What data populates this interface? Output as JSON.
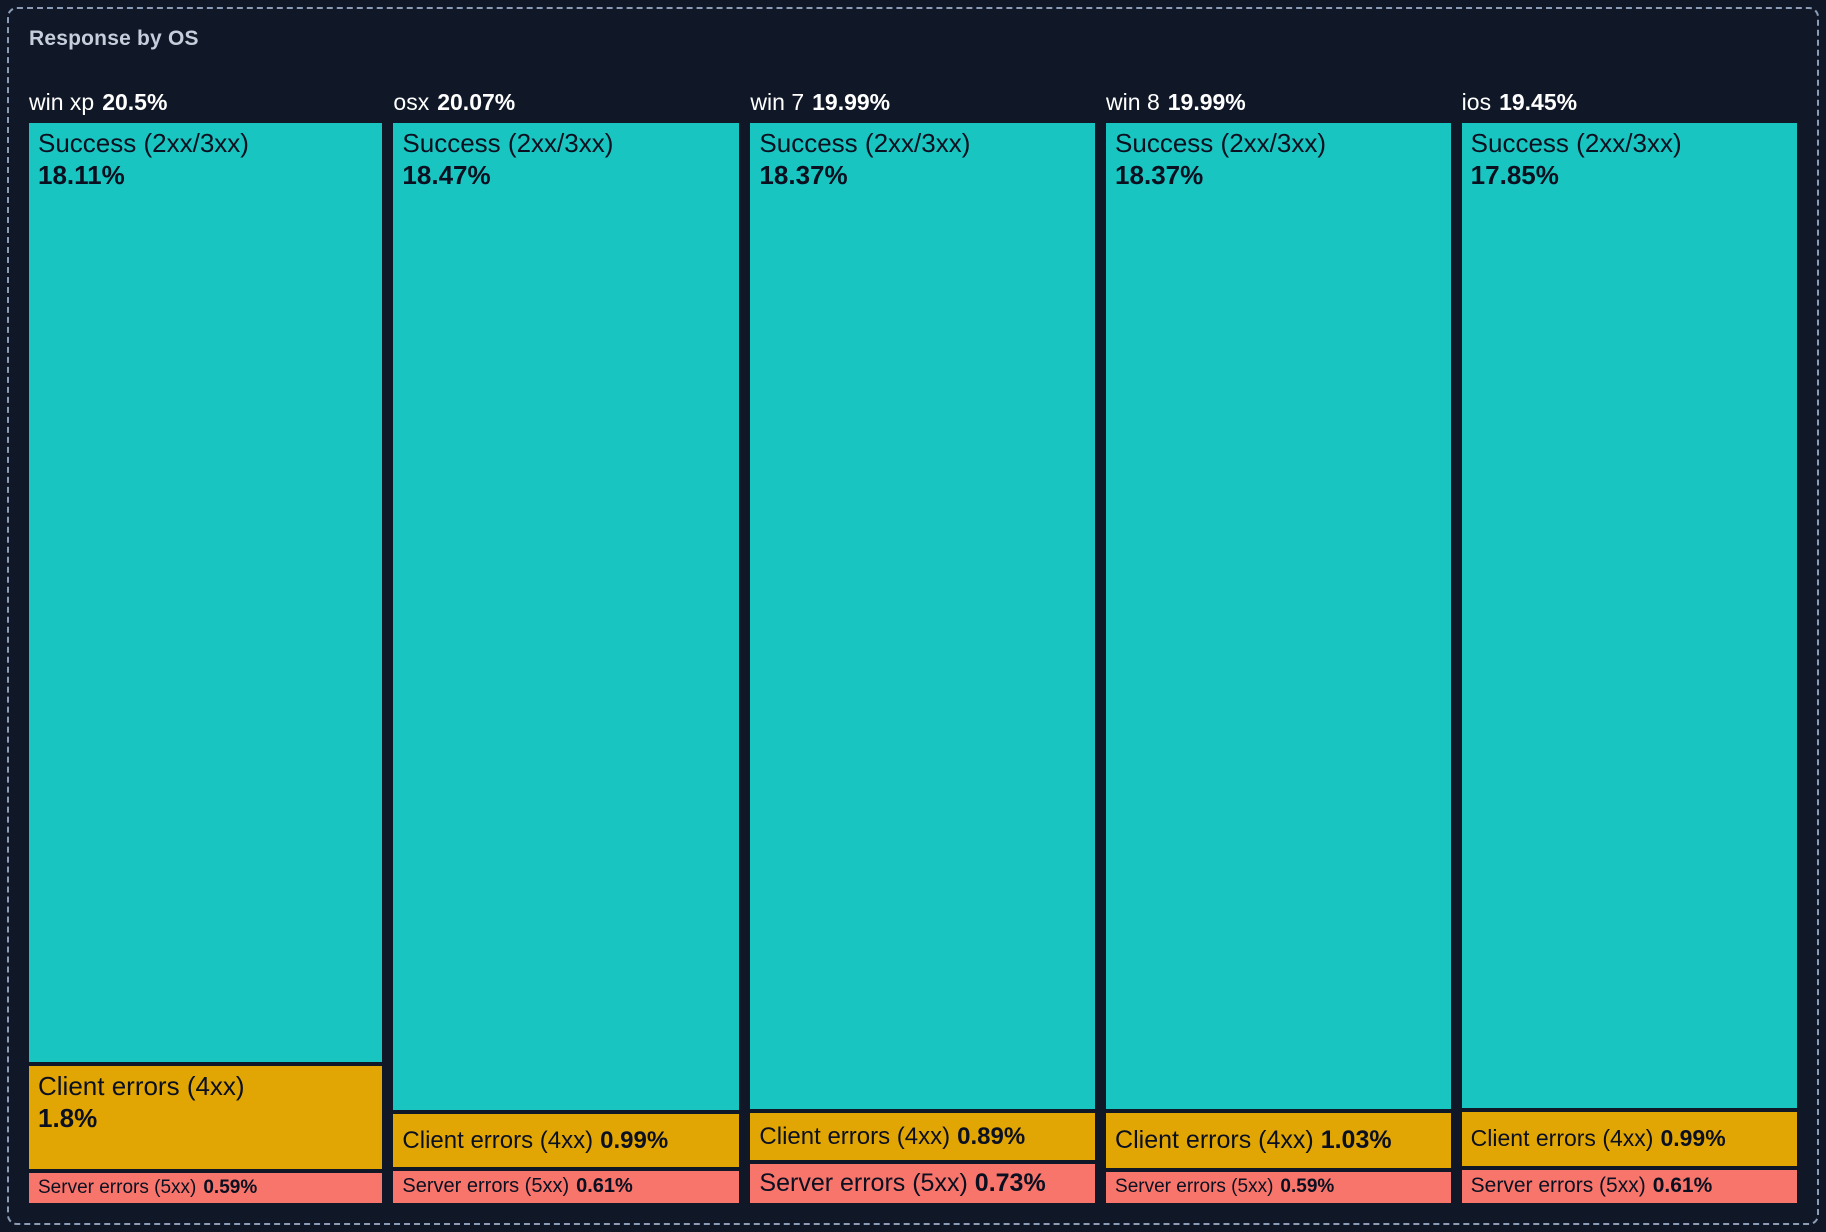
{
  "chart_data": {
    "type": "mosaic",
    "title": "Response by OS",
    "unit": "%",
    "legend_position": "none",
    "note": "Column width = OS share of total traffic; stacked segment height = response-class share",
    "colors": {
      "success": "#18c5c0",
      "client_errors": "#e2a604",
      "server_errors": "#f8756c",
      "background": "#101827",
      "border": "#8b9cb6",
      "title_text": "#c6cedb",
      "header_text": "#ffffff",
      "segment_text": "#0b1020"
    },
    "columns": [
      {
        "os": "win xp",
        "share": 20.5,
        "share_label": "20.5%",
        "segments": [
          {
            "name": "Success (2xx/3xx)",
            "value": 18.11,
            "pct": "18.11%"
          },
          {
            "name": "Client errors (4xx)",
            "value": 1.8,
            "pct": "1.8%"
          },
          {
            "name": "Server errors (5xx)",
            "value": 0.59,
            "pct": "0.59%"
          }
        ]
      },
      {
        "os": "osx",
        "share": 20.07,
        "share_label": "20.07%",
        "segments": [
          {
            "name": "Success (2xx/3xx)",
            "value": 18.47,
            "pct": "18.47%"
          },
          {
            "name": "Client errors (4xx)",
            "value": 0.99,
            "pct": "0.99%"
          },
          {
            "name": "Server errors (5xx)",
            "value": 0.61,
            "pct": "0.61%"
          }
        ]
      },
      {
        "os": "win 7",
        "share": 19.99,
        "share_label": "19.99%",
        "segments": [
          {
            "name": "Success (2xx/3xx)",
            "value": 18.37,
            "pct": "18.37%"
          },
          {
            "name": "Client errors (4xx)",
            "value": 0.89,
            "pct": "0.89%"
          },
          {
            "name": "Server errors (5xx)",
            "value": 0.73,
            "pct": "0.73%"
          }
        ]
      },
      {
        "os": "win 8",
        "share": 19.99,
        "share_label": "19.99%",
        "segments": [
          {
            "name": "Success (2xx/3xx)",
            "value": 18.37,
            "pct": "18.37%"
          },
          {
            "name": "Client errors (4xx)",
            "value": 1.03,
            "pct": "1.03%"
          },
          {
            "name": "Server errors (5xx)",
            "value": 0.59,
            "pct": "0.59%"
          }
        ]
      },
      {
        "os": "ios",
        "share": 19.45,
        "share_label": "19.45%",
        "segments": [
          {
            "name": "Success (2xx/3xx)",
            "value": 17.85,
            "pct": "17.85%"
          },
          {
            "name": "Client errors (4xx)",
            "value": 0.99,
            "pct": "0.99%"
          },
          {
            "name": "Server errors (5xx)",
            "value": 0.61,
            "pct": "0.61%"
          }
        ]
      }
    ]
  }
}
